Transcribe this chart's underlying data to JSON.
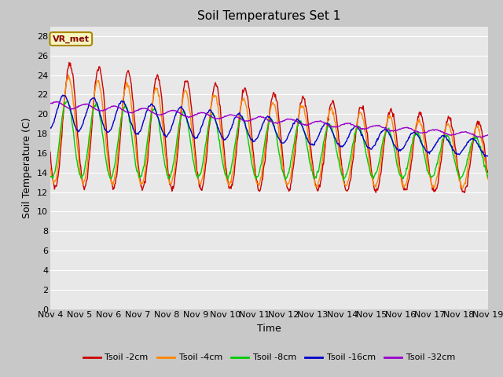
{
  "title": "Soil Temperatures Set 1",
  "xlabel": "Time",
  "ylabel": "Soil Temperature (C)",
  "ylim": [
    0,
    29
  ],
  "yticks": [
    0,
    2,
    4,
    6,
    8,
    10,
    12,
    14,
    16,
    18,
    20,
    22,
    24,
    26,
    28
  ],
  "x_labels": [
    "Nov 4",
    "Nov 5",
    "Nov 6",
    "Nov 7",
    "Nov 8",
    "Nov 9",
    "Nov 10",
    "Nov 11",
    "Nov 12",
    "Nov 13",
    "Nov 14",
    "Nov 15",
    "Nov 16",
    "Nov 17",
    "Nov 18",
    "Nov 19"
  ],
  "colors": {
    "Tsoil -2cm": "#cc0000",
    "Tsoil -4cm": "#ff8800",
    "Tsoil -8cm": "#00cc00",
    "Tsoil -16cm": "#0000cc",
    "Tsoil -32cm": "#9900cc"
  },
  "legend_labels": [
    "Tsoil -2cm",
    "Tsoil -4cm",
    "Tsoil -8cm",
    "Tsoil -16cm",
    "Tsoil -32cm"
  ],
  "annotation_text": "VR_met",
  "fig_bg_color": "#c8c8c8",
  "plot_bg_color": "#e8e8e8",
  "grid_color": "#ffffff",
  "title_fontsize": 11,
  "axis_fontsize": 9,
  "tick_fontsize": 8,
  "n_days": 15,
  "pts_per_day": 48
}
